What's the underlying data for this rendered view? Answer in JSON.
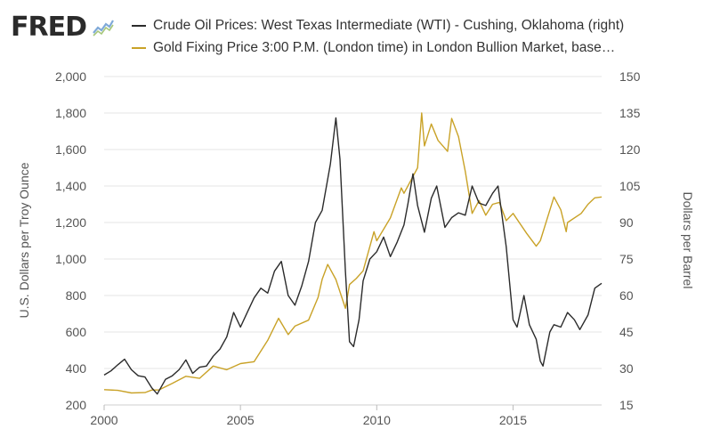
{
  "brand": {
    "logo_text": "FRED"
  },
  "legend": [
    {
      "label": "Crude Oil Prices: West Texas Intermediate (WTI) - Cushing, Oklahoma (right)",
      "color": "#2b2b2b"
    },
    {
      "label": "Gold Fixing Price 3:00 P.M. (London time) in London Bullion Market, base…",
      "color": "#c9a227"
    }
  ],
  "chart_data": {
    "type": "line",
    "xlabel": "",
    "ylabel_left": "U.S. Dollars per Troy Ounce",
    "ylabel_right": "Dollars per Barrel",
    "xlim": [
      2000,
      2018.25
    ],
    "ylim_left": [
      200,
      2000
    ],
    "ylim_right": [
      15,
      150
    ],
    "x_ticks": [
      "2000",
      "2005",
      "2010",
      "2015"
    ],
    "y_left_ticks": [
      "200",
      "400",
      "600",
      "800",
      "1,000",
      "1,200",
      "1,400",
      "1,600",
      "1,800",
      "2,000"
    ],
    "y_right_ticks": [
      "15",
      "30",
      "45",
      "60",
      "75",
      "90",
      "105",
      "120",
      "135",
      "150"
    ],
    "grid": true,
    "series": [
      {
        "name": "Crude Oil Prices: West Texas Intermediate (WTI) - Cushing, Oklahoma (right)",
        "axis": "right",
        "color": "#2b2b2b",
        "points": [
          [
            2000.0,
            27.3
          ],
          [
            2000.25,
            29.0
          ],
          [
            2000.5,
            31.5
          ],
          [
            2000.75,
            33.8
          ],
          [
            2001.0,
            29.5
          ],
          [
            2001.25,
            27.0
          ],
          [
            2001.5,
            26.5
          ],
          [
            2001.75,
            22.0
          ],
          [
            2001.95,
            19.5
          ],
          [
            2002.25,
            25.5
          ],
          [
            2002.5,
            27.0
          ],
          [
            2002.75,
            29.5
          ],
          [
            2003.0,
            33.5
          ],
          [
            2003.25,
            28.0
          ],
          [
            2003.5,
            30.5
          ],
          [
            2003.75,
            31.0
          ],
          [
            2004.0,
            35.0
          ],
          [
            2004.25,
            38.0
          ],
          [
            2004.5,
            43.0
          ],
          [
            2004.75,
            53.0
          ],
          [
            2005.0,
            47.0
          ],
          [
            2005.25,
            53.0
          ],
          [
            2005.5,
            59.0
          ],
          [
            2005.75,
            63.0
          ],
          [
            2006.0,
            61.0
          ],
          [
            2006.25,
            70.0
          ],
          [
            2006.5,
            74.0
          ],
          [
            2006.75,
            60.0
          ],
          [
            2007.0,
            56.0
          ],
          [
            2007.25,
            64.0
          ],
          [
            2007.5,
            74.0
          ],
          [
            2007.75,
            90.0
          ],
          [
            2008.0,
            95.0
          ],
          [
            2008.3,
            114.0
          ],
          [
            2008.5,
            133.0
          ],
          [
            2008.65,
            116.0
          ],
          [
            2008.85,
            70.0
          ],
          [
            2009.0,
            41.0
          ],
          [
            2009.15,
            39.0
          ],
          [
            2009.35,
            50.0
          ],
          [
            2009.5,
            66.0
          ],
          [
            2009.75,
            75.0
          ],
          [
            2010.0,
            78.0
          ],
          [
            2010.25,
            84.0
          ],
          [
            2010.5,
            76.0
          ],
          [
            2010.75,
            82.0
          ],
          [
            2011.0,
            89.0
          ],
          [
            2011.15,
            98.0
          ],
          [
            2011.33,
            110.0
          ],
          [
            2011.5,
            97.0
          ],
          [
            2011.75,
            86.0
          ],
          [
            2012.0,
            100.0
          ],
          [
            2012.2,
            105.0
          ],
          [
            2012.5,
            88.0
          ],
          [
            2012.75,
            92.0
          ],
          [
            2013.0,
            94.0
          ],
          [
            2013.25,
            93.0
          ],
          [
            2013.5,
            105.0
          ],
          [
            2013.75,
            98.0
          ],
          [
            2014.0,
            97.0
          ],
          [
            2014.25,
            102.0
          ],
          [
            2014.45,
            105.0
          ],
          [
            2014.75,
            80.0
          ],
          [
            2015.0,
            50.0
          ],
          [
            2015.15,
            47.0
          ],
          [
            2015.4,
            60.0
          ],
          [
            2015.6,
            48.0
          ],
          [
            2015.85,
            42.0
          ],
          [
            2016.0,
            33.0
          ],
          [
            2016.1,
            31.0
          ],
          [
            2016.35,
            45.0
          ],
          [
            2016.5,
            48.0
          ],
          [
            2016.75,
            47.0
          ],
          [
            2017.0,
            53.0
          ],
          [
            2017.25,
            50.0
          ],
          [
            2017.45,
            46.0
          ],
          [
            2017.75,
            52.0
          ],
          [
            2018.0,
            63.0
          ],
          [
            2018.25,
            65.0
          ]
        ]
      },
      {
        "name": "Gold Fixing Price 3:00 P.M. (London time) in London Bullion Market, base…",
        "axis": "left",
        "color": "#c9a227",
        "points": [
          [
            2000.0,
            284
          ],
          [
            2000.5,
            280
          ],
          [
            2001.0,
            266
          ],
          [
            2001.5,
            268
          ],
          [
            2001.75,
            282
          ],
          [
            2002.0,
            282
          ],
          [
            2002.5,
            318
          ],
          [
            2003.0,
            357
          ],
          [
            2003.5,
            346
          ],
          [
            2004.0,
            413
          ],
          [
            2004.5,
            393
          ],
          [
            2005.0,
            427
          ],
          [
            2005.5,
            437
          ],
          [
            2006.0,
            554
          ],
          [
            2006.4,
            675
          ],
          [
            2006.75,
            586
          ],
          [
            2007.0,
            632
          ],
          [
            2007.5,
            665
          ],
          [
            2007.85,
            790
          ],
          [
            2008.0,
            889
          ],
          [
            2008.2,
            970
          ],
          [
            2008.5,
            888
          ],
          [
            2008.85,
            730
          ],
          [
            2009.0,
            860
          ],
          [
            2009.25,
            893
          ],
          [
            2009.5,
            935
          ],
          [
            2009.9,
            1150
          ],
          [
            2010.0,
            1100
          ],
          [
            2010.5,
            1225
          ],
          [
            2010.9,
            1390
          ],
          [
            2011.0,
            1360
          ],
          [
            2011.5,
            1500
          ],
          [
            2011.65,
            1800
          ],
          [
            2011.75,
            1620
          ],
          [
            2012.0,
            1740
          ],
          [
            2012.25,
            1650
          ],
          [
            2012.6,
            1590
          ],
          [
            2012.75,
            1770
          ],
          [
            2013.0,
            1670
          ],
          [
            2013.25,
            1480
          ],
          [
            2013.5,
            1250
          ],
          [
            2013.75,
            1320
          ],
          [
            2014.0,
            1240
          ],
          [
            2014.25,
            1300
          ],
          [
            2014.5,
            1310
          ],
          [
            2014.75,
            1210
          ],
          [
            2015.0,
            1250
          ],
          [
            2015.5,
            1140
          ],
          [
            2015.85,
            1070
          ],
          [
            2016.0,
            1100
          ],
          [
            2016.5,
            1340
          ],
          [
            2016.75,
            1270
          ],
          [
            2016.95,
            1150
          ],
          [
            2017.0,
            1200
          ],
          [
            2017.5,
            1250
          ],
          [
            2017.75,
            1300
          ],
          [
            2018.0,
            1335
          ],
          [
            2018.25,
            1340
          ]
        ]
      }
    ]
  }
}
